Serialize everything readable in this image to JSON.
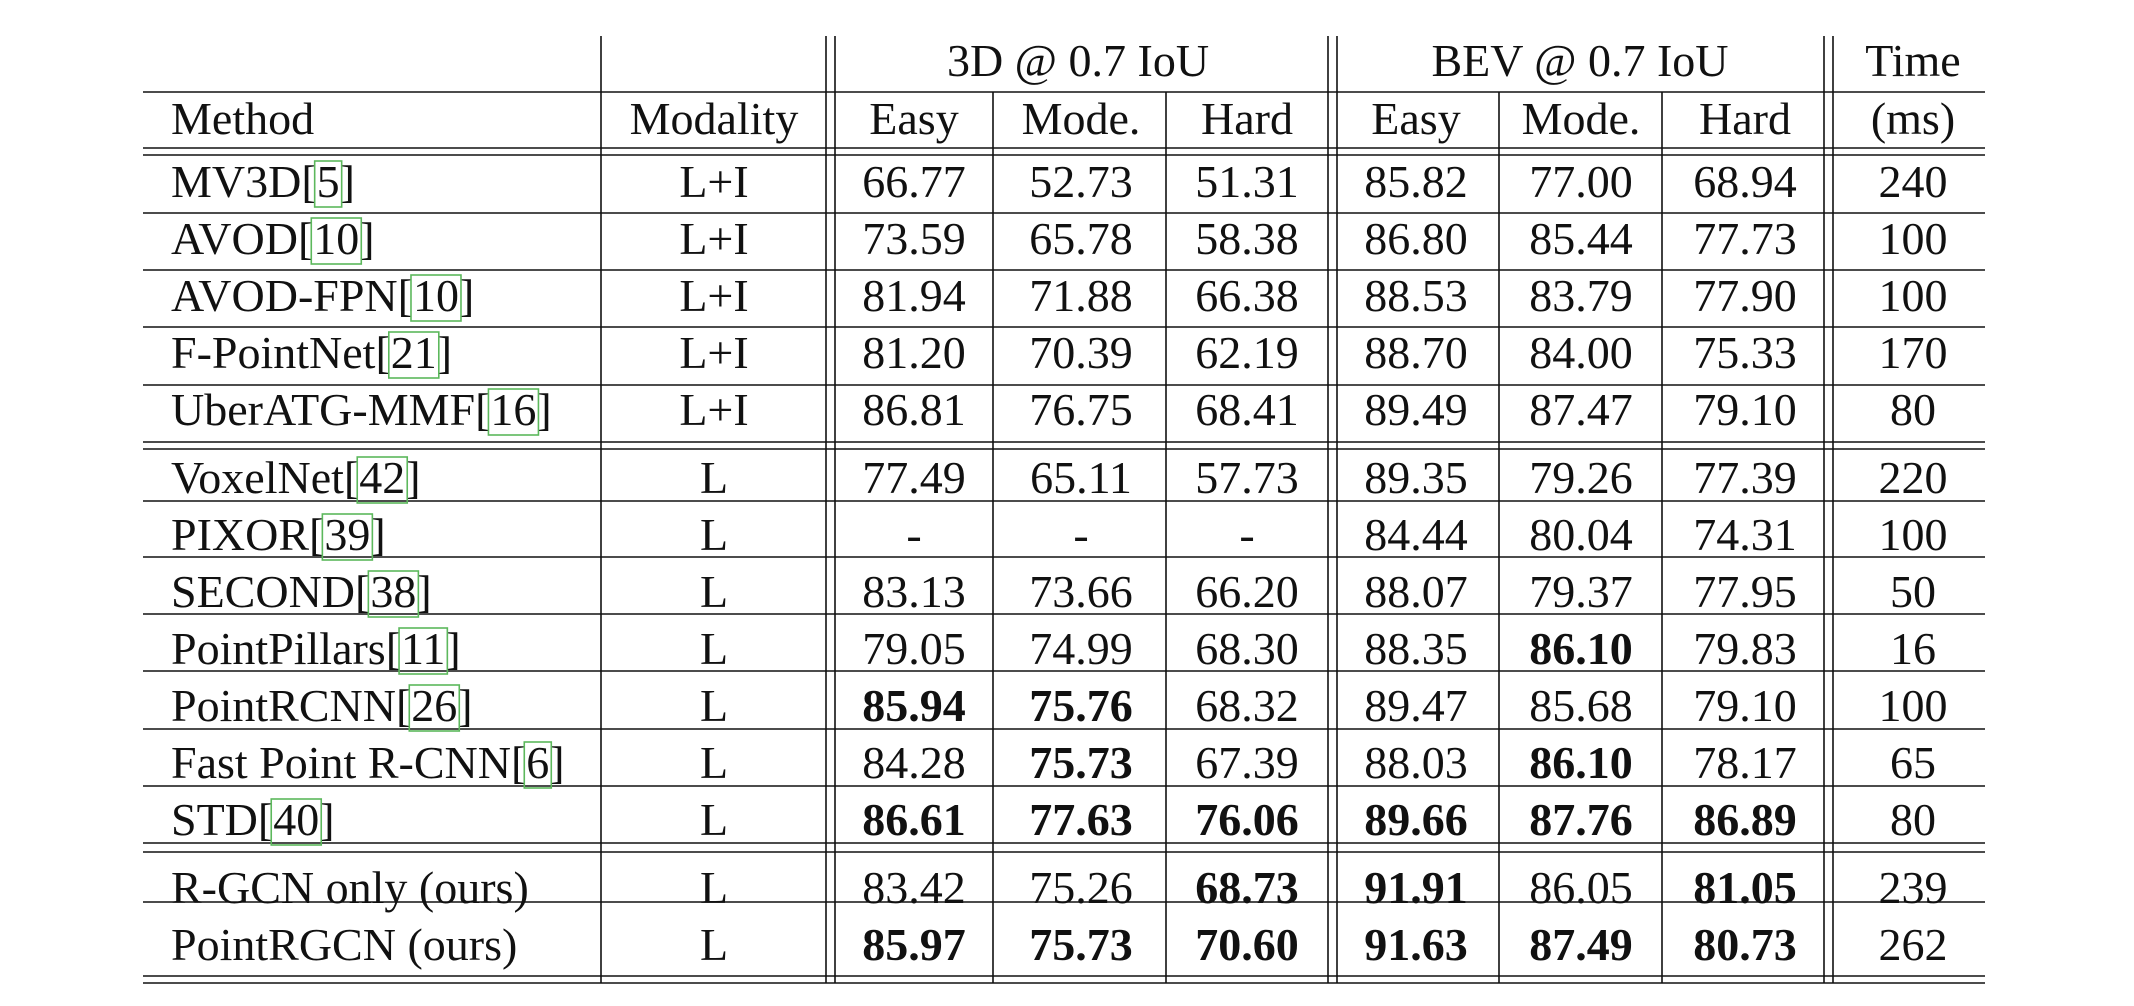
{
  "colors": {
    "orange": "#d9763f",
    "blue": "#1f6fa8",
    "green": "#1e9a55",
    "ref_box": "#5cb85c",
    "text": "#111111"
  },
  "header": {
    "group_3d": "3D @ 0.7 IoU",
    "group_bev": "BEV @ 0.7 IoU",
    "time_top": "Time",
    "method": "Method",
    "modality": "Modality",
    "easy": "Easy",
    "moderate": "Mode.",
    "hard": "Hard",
    "time_bottom": "(ms)"
  },
  "rows": [
    {
      "method": "MV3D",
      "ref": "[5]",
      "modality": "L+I",
      "vals": [
        "66.77",
        "52.73",
        "51.31",
        "85.82",
        "77.00",
        "68.94",
        "240"
      ],
      "hl": [
        "",
        "",
        "",
        "",
        "",
        "",
        ""
      ]
    },
    {
      "method": "AVOD",
      "ref": "[10]",
      "modality": "L+I",
      "vals": [
        "73.59",
        "65.78",
        "58.38",
        "86.80",
        "85.44",
        "77.73",
        "100"
      ],
      "hl": [
        "",
        "",
        "",
        "",
        "",
        "",
        ""
      ]
    },
    {
      "method": "AVOD-FPN",
      "ref": "[10]",
      "modality": "L+I",
      "vals": [
        "81.94",
        "71.88",
        "66.38",
        "88.53",
        "83.79",
        "77.90",
        "100"
      ],
      "hl": [
        "",
        "",
        "",
        "",
        "",
        "",
        ""
      ]
    },
    {
      "method": "F-PointNet",
      "ref": "[21]",
      "modality": "L+I",
      "vals": [
        "81.20",
        "70.39",
        "62.19",
        "88.70",
        "84.00",
        "75.33",
        "170"
      ],
      "hl": [
        "",
        "",
        "",
        "",
        "",
        "",
        ""
      ]
    },
    {
      "method": "UberATG-MMF",
      "ref": "[16]",
      "modality": "L+I",
      "vals": [
        "86.81",
        "76.75",
        "68.41",
        "89.49",
        "87.47",
        "79.10",
        "80"
      ],
      "hl": [
        "",
        "",
        "",
        "",
        "",
        "",
        ""
      ]
    },
    {
      "method": "VoxelNet",
      "ref": "[42]",
      "modality": "L",
      "vals": [
        "77.49",
        "65.11",
        "57.73",
        "89.35",
        "79.26",
        "77.39",
        "220"
      ],
      "hl": [
        "",
        "",
        "",
        "",
        "",
        "",
        ""
      ]
    },
    {
      "method": "PIXOR",
      "ref": "[39]",
      "modality": "L",
      "vals": [
        "-",
        "-",
        "-",
        "84.44",
        "80.04",
        "74.31",
        "100"
      ],
      "hl": [
        "",
        "",
        "",
        "",
        "",
        "",
        ""
      ]
    },
    {
      "method": "SECOND",
      "ref": "[38]",
      "modality": "L",
      "vals": [
        "83.13",
        "73.66",
        "66.20",
        "88.07",
        "79.37",
        "77.95",
        "50"
      ],
      "hl": [
        "",
        "",
        "",
        "",
        "",
        "",
        ""
      ]
    },
    {
      "method": "PointPillars",
      "ref": "[11]",
      "modality": "L",
      "vals": [
        "79.05",
        "74.99",
        "68.30",
        "88.35",
        "86.10",
        "79.83",
        "16"
      ],
      "hl": [
        "",
        "",
        "",
        "",
        "blue",
        "",
        ""
      ]
    },
    {
      "method": "PointRCNN",
      "ref": "[26]",
      "modality": "L",
      "vals": [
        "85.94",
        "75.76",
        "68.32",
        "89.47",
        "85.68",
        "79.10",
        "100"
      ],
      "hl": [
        "blue",
        "green",
        "",
        "",
        "",
        "",
        ""
      ]
    },
    {
      "method": "Fast Point R-CNN",
      "ref": "[6]",
      "modality": "L",
      "vals": [
        "84.28",
        "75.73",
        "67.39",
        "88.03",
        "86.10",
        "78.17",
        "65"
      ],
      "hl": [
        "",
        "blue",
        "",
        "",
        "blue",
        "",
        ""
      ]
    },
    {
      "method": "STD",
      "ref": "[40]",
      "modality": "L",
      "vals": [
        "86.61",
        "77.63",
        "76.06",
        "89.66",
        "87.76",
        "86.89",
        "80"
      ],
      "hl": [
        "orange",
        "orange",
        "orange",
        "blue",
        "orange",
        "orange",
        ""
      ]
    },
    {
      "method": "R-GCN only (ours)",
      "ref": "",
      "modality": "L",
      "vals": [
        "83.42",
        "75.26",
        "68.73",
        "91.91",
        "86.05",
        "81.05",
        "239"
      ],
      "hl": [
        "",
        "",
        "blue",
        "orange",
        "",
        "green",
        ""
      ]
    },
    {
      "method": "PointRGCN (ours)",
      "ref": "",
      "modality": "L",
      "vals": [
        "85.97",
        "75.73",
        "70.60",
        "91.63",
        "87.49",
        "80.73",
        "262"
      ],
      "hl": [
        "green",
        "blue",
        "green",
        "green",
        "green",
        "blue",
        ""
      ]
    }
  ]
}
